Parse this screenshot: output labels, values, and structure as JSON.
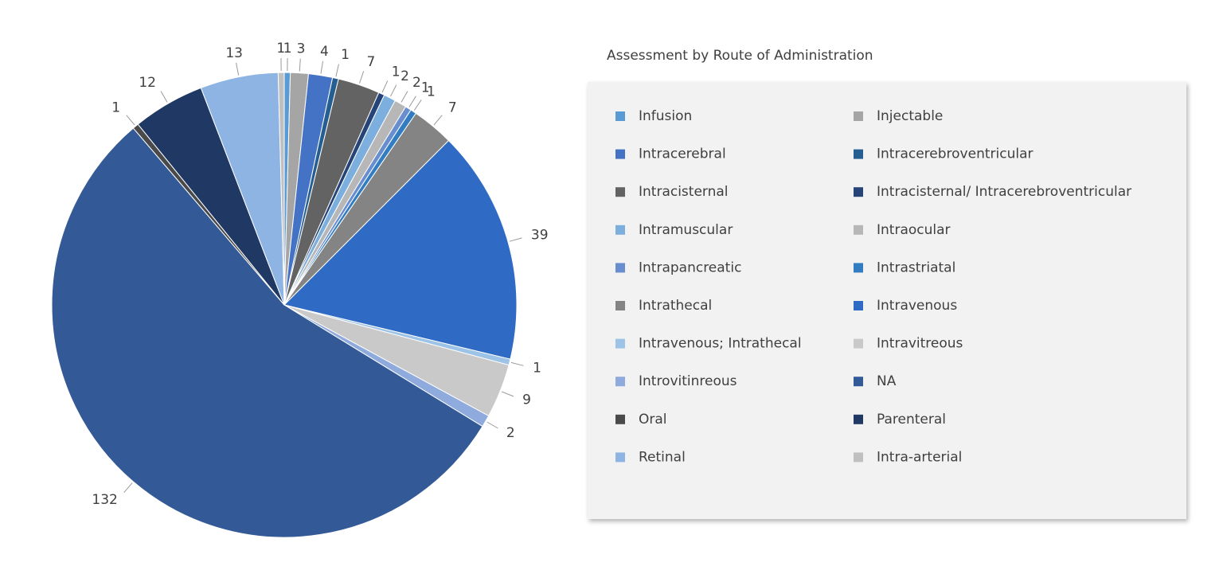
{
  "chart_data": {
    "type": "pie",
    "title": "Assessment by Route of Administration",
    "categories": [
      "Infusion",
      "Injectable",
      "Intracerebral",
      "Intracerebroventricular",
      "Intracisternal",
      "Intracisternal/ Intracerebroventricular",
      "Intramuscular",
      "Intraocular",
      "Intrapancreatic",
      "Intrastriatal",
      "Intrathecal",
      "Intravenous",
      "Intravenous; Intrathecal",
      "Intravitreous",
      "Introvitinreous",
      "NA",
      "Oral",
      "Parenteral",
      "Retinal",
      "Intra-arterial"
    ],
    "values": [
      1,
      3,
      4,
      1,
      7,
      1,
      2,
      2,
      1,
      1,
      7,
      39,
      1,
      9,
      2,
      132,
      1,
      12,
      13,
      1
    ],
    "colors": [
      "#5b9bd5",
      "#a5a5a5",
      "#4472c4",
      "#255e91",
      "#636363",
      "#264478",
      "#7cafdd",
      "#b7b7b7",
      "#698ed0",
      "#327dc2",
      "#848484",
      "#2f6bc4",
      "#9dc3e6",
      "#c9c9c9",
      "#8faadc",
      "#335a97",
      "#4a4a4a",
      "#203864",
      "#8db4e2",
      "#c0c0c0"
    ]
  }
}
